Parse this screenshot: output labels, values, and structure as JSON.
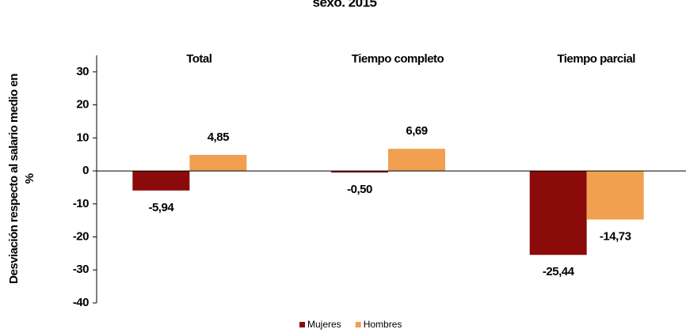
{
  "chart_data": {
    "type": "bar",
    "title": "sexo. 2015",
    "y_label": [
      "Desviación respecto al salario medio en",
      "%"
    ],
    "categories": [
      "Total",
      "Tiempo completo",
      "Tiempo parcial"
    ],
    "series": [
      {
        "name": "Mujeres",
        "color": "#8b0a0a",
        "values": [
          -5.94,
          -0.5,
          -25.44
        ],
        "value_labels": [
          "-5,94",
          "-0,50",
          "-25,44"
        ]
      },
      {
        "name": "Hombres",
        "color": "#f0a050",
        "values": [
          4.85,
          6.69,
          -14.73
        ],
        "value_labels": [
          "4,85",
          "6,69",
          "-14,73"
        ]
      }
    ],
    "ylim": [
      -40,
      35
    ],
    "yticks": [
      30,
      20,
      10,
      0,
      -10,
      -20,
      -30,
      -40
    ],
    "legend": "bottom"
  }
}
